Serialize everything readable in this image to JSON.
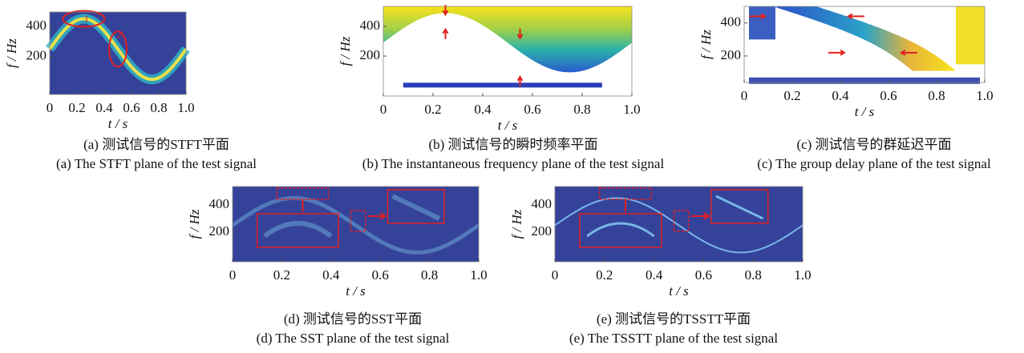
{
  "chart_data": [
    {
      "type": "stft",
      "xlabel": "t / s",
      "ylabel": "f / Hz",
      "caption_cn": "(a)  测试信号的STFT平面",
      "caption_en": "(a)  The STFT plane of the test signal",
      "annotations": [
        "1",
        "2"
      ],
      "xlim": [
        0,
        1
      ],
      "xticks": [
        0,
        0.2,
        0.4,
        0.6,
        0.8,
        {
          "value": 1,
          "label": "1.0"
        }
      ],
      "ylim": [
        -50,
        495
      ],
      "yticks": [
        200,
        400
      ]
    },
    {
      "type": "ifreq",
      "xlabel": "t / s",
      "ylabel": "f / Hz",
      "caption_cn": "(b)  测试信号的瞬时频率平面",
      "caption_en": "(b)  The instantaneous frequency plane of the test signal",
      "xlim": [
        0,
        1
      ],
      "xticks": [
        0,
        0.2,
        0.4,
        0.6,
        0.8,
        {
          "value": 1,
          "label": "1.0"
        }
      ],
      "ylim": [
        -70,
        535
      ],
      "yticks": [
        200,
        400
      ]
    },
    {
      "type": "gdelay",
      "xlabel": "t / s",
      "ylabel": "f / Hz",
      "caption_cn": "(c)  测试信号的群延迟平面",
      "caption_en": "(c)  The group delay plane of the test signal",
      "xlim": [
        0,
        1
      ],
      "xticks": [
        0,
        0.2,
        0.4,
        0.6,
        0.8,
        {
          "value": 1,
          "label": "1.0"
        }
      ],
      "ylim": [
        40,
        500
      ],
      "yticks": [
        200,
        400
      ]
    },
    {
      "type": "sst",
      "xlabel": "t / s",
      "ylabel": "f / Hz",
      "caption_cn": "(d)  测试信号的SST平面",
      "caption_en": "(d)  The SST plane of the test signal",
      "xlim": [
        0,
        1
      ],
      "xticks": [
        0,
        0.2,
        0.4,
        0.6,
        0.8,
        {
          "value": 1,
          "label": "1.0"
        }
      ],
      "ylim": [
        -18,
        535
      ],
      "yticks": [
        200,
        400
      ]
    },
    {
      "type": "tsstt",
      "xlabel": "t / s",
      "ylabel": "f / Hz",
      "caption_cn": "(e)  测试信号的TSSTT平面",
      "caption_en": "(e)  The TSSTT plane of the test signal",
      "xlim": [
        0,
        1
      ],
      "xticks": [
        0,
        0.2,
        0.4,
        0.6,
        0.8,
        {
          "value": 1,
          "label": "1.0"
        }
      ],
      "ylim": [
        -18,
        535
      ],
      "yticks": [
        200,
        400
      ]
    }
  ]
}
